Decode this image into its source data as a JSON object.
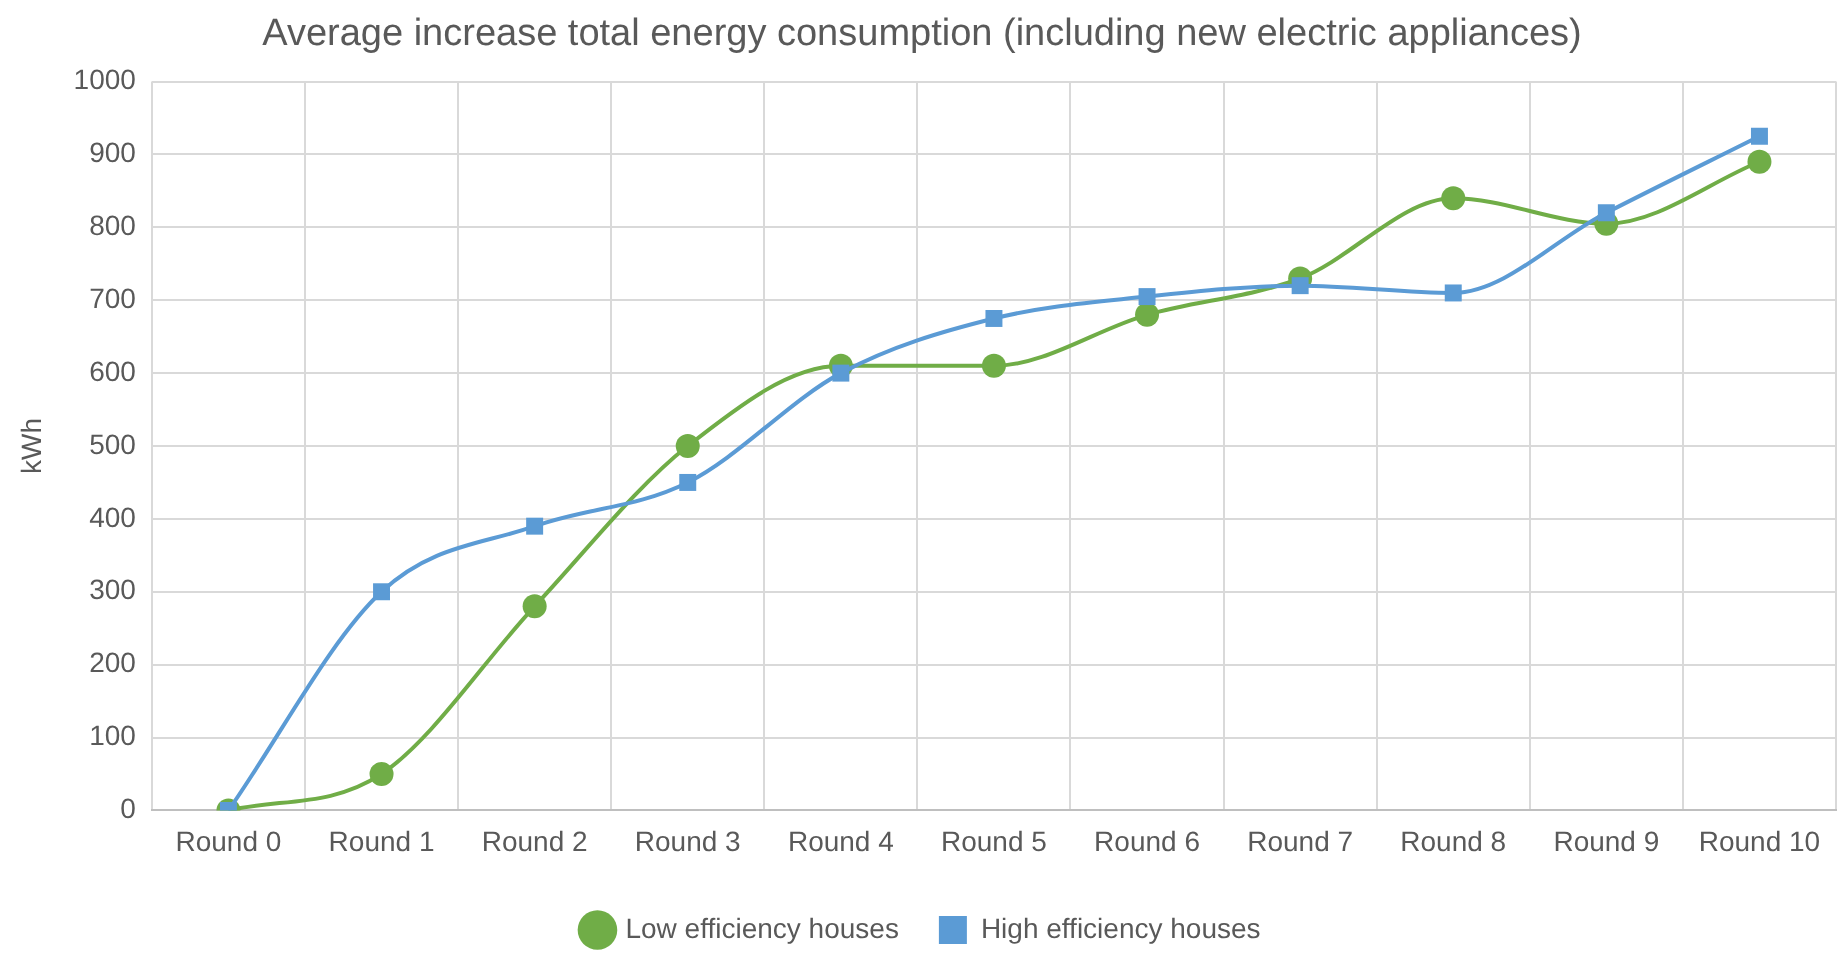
{
  "chart_data": {
    "type": "line",
    "title": "Average increase total energy consumption (including new electric appliances)",
    "ylabel": "kWh",
    "categories": [
      "Round 0",
      "Round 1",
      "Round 2",
      "Round 3",
      "Round 4",
      "Round 5",
      "Round 6",
      "Round 7",
      "Round 8",
      "Round 9",
      "Round 10"
    ],
    "series": [
      {
        "name": "Low efficiency houses",
        "color": "#70ad47",
        "marker": "circle",
        "values": [
          0,
          50,
          280,
          500,
          610,
          610,
          680,
          730,
          840,
          805,
          890
        ]
      },
      {
        "name": "High efficiency houses",
        "color": "#5b9bd5",
        "marker": "square",
        "values": [
          0,
          300,
          390,
          450,
          600,
          675,
          705,
          720,
          710,
          820,
          925
        ]
      }
    ],
    "ylim": [
      0,
      1000
    ],
    "yticks": [
      0,
      100,
      200,
      300,
      400,
      500,
      600,
      700,
      800,
      900,
      1000
    ],
    "grid": true,
    "legend": "bottom",
    "line_style": "solid"
  }
}
